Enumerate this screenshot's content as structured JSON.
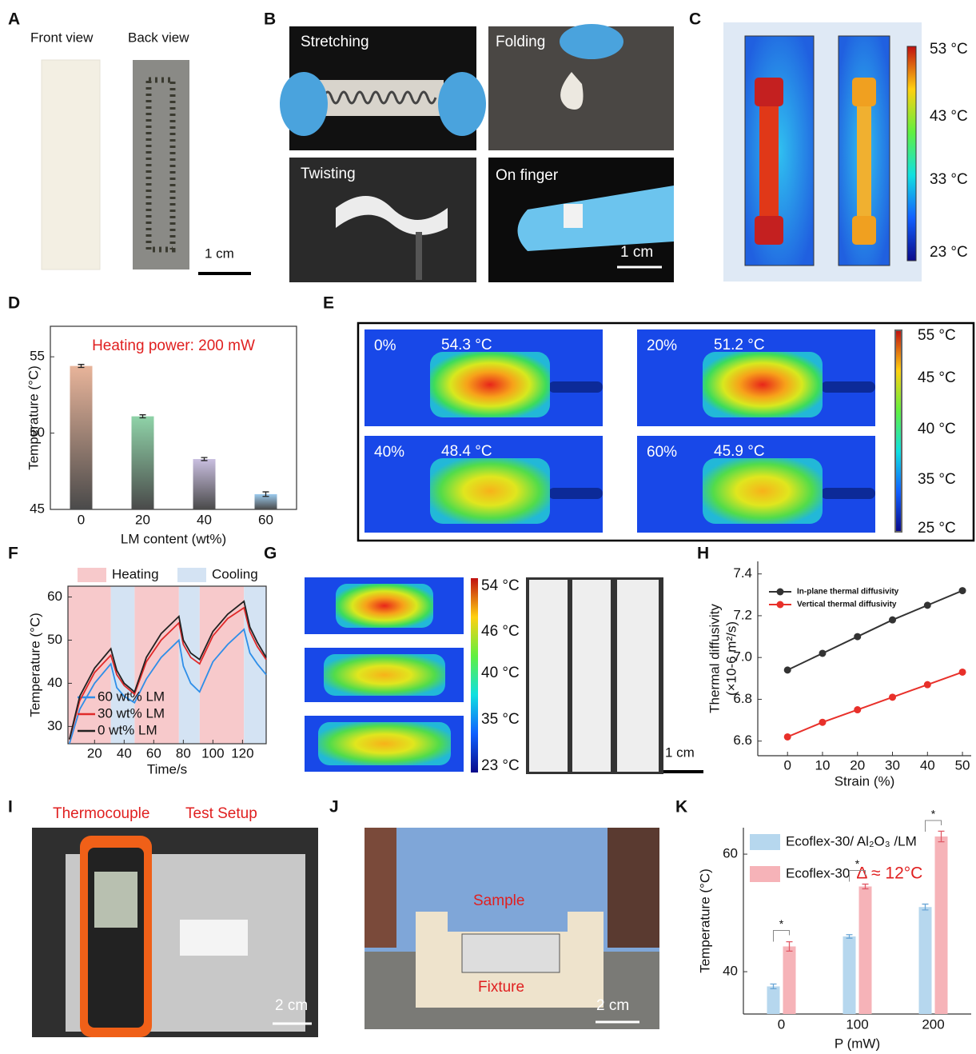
{
  "panel_labels": [
    "A",
    "B",
    "C",
    "D",
    "E",
    "F",
    "G",
    "H",
    "I",
    "J",
    "K"
  ],
  "panel_a": {
    "front": "Front view",
    "back": "Back view",
    "scale": "1 cm"
  },
  "panel_b": {
    "captions": [
      "Stretching",
      "Folding",
      "Twisting",
      "On finger"
    ],
    "scale": "1 cm"
  },
  "panel_c": {
    "colorbar": [
      "53 °C",
      "43 °C",
      "33 °C",
      "23 °C"
    ]
  },
  "panel_e": {
    "strains": [
      "0%",
      "20%",
      "40%",
      "60%"
    ],
    "temps": [
      "54.3 °C",
      "51.2 °C",
      "48.4 °C",
      "45.9 °C"
    ],
    "colorbar": [
      "55 °C",
      "45 °C",
      "40 °C",
      "35 °C",
      "25 °C"
    ]
  },
  "panel_g": {
    "colorbar": [
      "54 °C",
      "46 °C",
      "40 °C",
      "35 °C",
      "23 °C"
    ],
    "scale": "1 cm"
  },
  "panel_i": {
    "labels": [
      "Thermocouple",
      "Test Setup"
    ],
    "scale": "2 cm"
  },
  "panel_j": {
    "labels": [
      "Sample",
      "Fixture"
    ],
    "scale": "2 cm"
  },
  "chart_data": [
    {
      "type": "bar",
      "annotation": "Heating power: 200 mW",
      "x_label": "LM content (wt%)",
      "y_label": "Temperature (°C)",
      "categories": [
        "0",
        "20",
        "40",
        "60"
      ],
      "values": [
        54.4,
        51.1,
        48.3,
        46.0
      ],
      "errors": [
        0.1,
        0.1,
        0.1,
        0.15
      ],
      "colors": [
        "#e8b49a",
        "#8fd3a8",
        "#c9bfe0",
        "#9ccbef"
      ],
      "ylim": [
        45,
        57
      ],
      "yticks": [
        45,
        50,
        55
      ]
    },
    {
      "type": "line",
      "x_label": "Time/s",
      "y_label": "Temperature (°C)",
      "span_labels": [
        "Heating",
        "Cooling"
      ],
      "span_colors": [
        "#f7c9cb",
        "#d4e3f3"
      ],
      "heating_spans": [
        [
          2,
          31
        ],
        [
          47,
          77
        ],
        [
          91,
          121
        ]
      ],
      "cooling_spans": [
        [
          31,
          47
        ],
        [
          77,
          91
        ],
        [
          121,
          136
        ]
      ],
      "x": [
        3,
        10,
        20,
        31,
        35,
        40,
        47,
        55,
        65,
        77,
        80,
        85,
        91,
        100,
        110,
        121,
        125,
        130,
        136
      ],
      "series": [
        {
          "name": "60 wt% LM",
          "color": "#2e8ee8",
          "values": [
            26,
            34,
            40,
            44.5,
            39,
            37,
            35.5,
            41,
            46,
            50,
            44,
            40,
            38,
            45,
            49,
            52.5,
            47,
            44.5,
            42
          ]
        },
        {
          "name": "30 wt% LM",
          "color": "#e02a2a",
          "values": [
            27,
            36,
            42.5,
            46.5,
            42,
            39.5,
            37.5,
            45,
            50,
            54,
            49,
            46,
            44.5,
            51,
            55,
            57.5,
            52,
            48.5,
            45.5
          ]
        },
        {
          "name": "0 wt% LM",
          "color": "#222222",
          "values": [
            27,
            37,
            43.5,
            48,
            43,
            40,
            38,
            46,
            51.5,
            55.5,
            50,
            47,
            45.5,
            52,
            56,
            59,
            53,
            49.5,
            46
          ]
        }
      ],
      "xlim": [
        2,
        136
      ],
      "xticks": [
        20,
        40,
        60,
        80,
        100,
        120
      ],
      "ylim": [
        26,
        62.5
      ],
      "yticks": [
        30,
        40,
        50,
        60
      ]
    },
    {
      "type": "line",
      "markers": true,
      "x_label": "Strain (%)",
      "y_label": [
        "Thermal diffusivity",
        "(×10-6 m²/s)"
      ],
      "x": [
        0,
        10,
        20,
        30,
        40,
        50
      ],
      "series": [
        {
          "name": "In-plane thermal diffusivity",
          "color": "#333333",
          "values": [
            6.94,
            7.02,
            7.1,
            7.18,
            7.25,
            7.32
          ]
        },
        {
          "name": "Vertical thermal diffusivity",
          "color": "#e8302a",
          "values": [
            6.62,
            6.69,
            6.75,
            6.81,
            6.87,
            6.93
          ]
        }
      ],
      "xlim": [
        -8.5,
        52.5
      ],
      "xticks": [
        0,
        10,
        20,
        30,
        40,
        50
      ],
      "ylim": [
        6.53,
        7.46
      ],
      "yticks": [
        6.6,
        6.8,
        {
          "value": 7,
          "label": "7.0"
        },
        7.2,
        7.4
      ]
    },
    {
      "type": "bar",
      "x_label": "P (mW)",
      "y_label": "Temperature (°C)",
      "annotations": [
        "*",
        "*",
        "*"
      ],
      "delta_label": "Δ ≈ 12°C",
      "categories": [
        "0",
        "100",
        "200"
      ],
      "series": [
        {
          "name": "Ecoflex-30/ Al₂O₃ /LM",
          "color": "#b6d7ee",
          "values": [
            37.5,
            46.0,
            51.0
          ],
          "errors": [
            0.4,
            0.3,
            0.5
          ]
        },
        {
          "name": "Ecoflex-30",
          "color": "#f6b3b8",
          "values": [
            44.3,
            54.5,
            63.0
          ],
          "errors": [
            0.8,
            0.4,
            0.9
          ]
        }
      ],
      "ylim": [
        32.8,
        64.5
      ],
      "yticks": [
        40,
        60
      ]
    }
  ]
}
